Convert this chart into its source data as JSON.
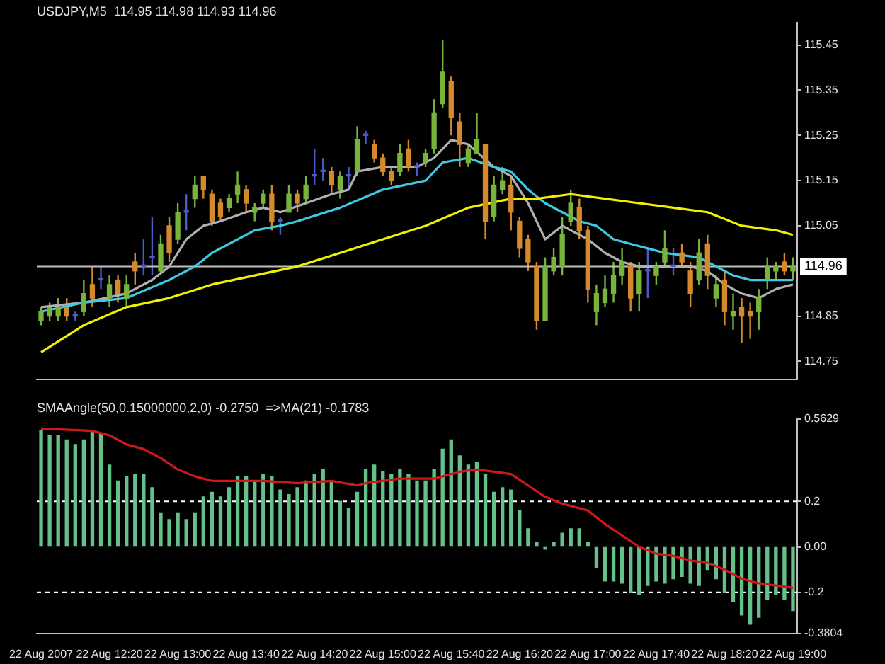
{
  "chart_data": [
    {
      "type": "candlestick",
      "title": "USDJPY,M5  114.95 114.98 114.93 114.96",
      "categories": [
        null,
        null,
        null,
        null,
        null,
        null,
        null,
        null,
        null,
        null,
        null,
        null,
        null,
        null,
        null,
        null,
        null,
        null,
        null,
        null,
        null,
        null,
        null,
        null,
        null,
        null,
        null,
        null,
        null,
        null,
        null,
        null,
        null,
        null,
        null,
        null,
        null,
        null,
        null,
        null,
        null,
        null,
        null,
        null,
        null,
        null,
        null,
        null,
        null,
        null,
        null,
        null,
        null,
        null,
        null,
        null,
        null,
        null,
        null,
        null,
        null,
        null,
        null,
        null,
        null,
        null,
        null,
        null,
        null,
        null,
        null,
        null,
        null,
        null,
        null,
        null,
        null,
        null,
        null,
        null,
        null,
        null,
        null,
        null,
        null,
        null,
        null,
        null,
        null
      ],
      "ohlc": [
        [
          114.84,
          114.87,
          114.83,
          114.86
        ],
        [
          114.85,
          114.88,
          114.84,
          114.87
        ],
        [
          114.85,
          114.89,
          114.84,
          114.87
        ],
        [
          114.87,
          114.89,
          114.84,
          114.85
        ],
        [
          114.85,
          114.86,
          114.84,
          114.85
        ],
        [
          114.86,
          114.93,
          114.85,
          114.9
        ],
        [
          114.92,
          114.96,
          114.87,
          114.89
        ],
        [
          114.93,
          114.96,
          114.91,
          114.93
        ],
        [
          114.89,
          114.94,
          114.87,
          114.92
        ],
        [
          114.93,
          114.94,
          114.88,
          114.9
        ],
        [
          114.89,
          114.94,
          114.87,
          114.92
        ],
        [
          114.97,
          114.99,
          114.92,
          114.95
        ],
        [
          114.96,
          115.02,
          114.94,
          114.96
        ],
        [
          114.98,
          115.07,
          114.94,
          114.98
        ],
        [
          114.95,
          115.03,
          114.94,
          115.01
        ],
        [
          115.05,
          115.07,
          114.97,
          114.99
        ],
        [
          115.02,
          115.1,
          115.01,
          115.08
        ],
        [
          115.08,
          115.12,
          115.04,
          115.08
        ],
        [
          115.11,
          115.16,
          115.09,
          115.14
        ],
        [
          115.16,
          115.16,
          115.11,
          115.13
        ],
        [
          115.12,
          115.13,
          115.05,
          115.06
        ],
        [
          115.1,
          115.11,
          115.06,
          115.07
        ],
        [
          115.09,
          115.12,
          115.08,
          115.11
        ],
        [
          115.12,
          115.17,
          115.1,
          115.14
        ],
        [
          115.13,
          115.14,
          115.08,
          115.1
        ],
        [
          115.08,
          115.1,
          115.06,
          115.09
        ],
        [
          115.1,
          115.13,
          115.09,
          115.12
        ],
        [
          115.12,
          115.14,
          115.04,
          115.06
        ],
        [
          115.06,
          115.07,
          115.03,
          115.06
        ],
        [
          115.08,
          115.14,
          115.08,
          115.12
        ],
        [
          115.12,
          115.13,
          115.08,
          115.1
        ],
        [
          115.11,
          115.16,
          115.1,
          115.14
        ],
        [
          115.16,
          115.22,
          115.14,
          115.16
        ],
        [
          115.17,
          115.2,
          115.15,
          115.17
        ],
        [
          115.17,
          115.18,
          115.12,
          115.14
        ],
        [
          115.13,
          115.17,
          115.11,
          115.16
        ],
        [
          115.16,
          115.18,
          115.13,
          115.16
        ],
        [
          115.17,
          115.27,
          115.16,
          115.24
        ],
        [
          115.25,
          115.26,
          115.23,
          115.25
        ],
        [
          115.23,
          115.24,
          115.19,
          115.2
        ],
        [
          115.2,
          115.21,
          115.16,
          115.17
        ],
        [
          115.17,
          115.18,
          115.14,
          115.15
        ],
        [
          115.17,
          115.23,
          115.16,
          115.21
        ],
        [
          115.22,
          115.24,
          115.17,
          115.18
        ],
        [
          115.18,
          115.19,
          115.16,
          115.18
        ],
        [
          115.19,
          115.22,
          115.18,
          115.21
        ],
        [
          115.22,
          115.33,
          115.21,
          115.3
        ],
        [
          115.32,
          115.46,
          115.31,
          115.39
        ],
        [
          115.37,
          115.38,
          115.25,
          115.29
        ],
        [
          115.28,
          115.3,
          115.18,
          115.23
        ],
        [
          115.19,
          115.23,
          115.18,
          115.22
        ],
        [
          115.21,
          115.3,
          115.21,
          115.24
        ],
        [
          115.23,
          115.23,
          115.02,
          115.06
        ],
        [
          115.07,
          115.16,
          115.06,
          115.14
        ],
        [
          115.13,
          115.18,
          115.12,
          115.15
        ],
        [
          115.14,
          115.16,
          115.04,
          115.08
        ],
        [
          115.06,
          115.07,
          114.98,
          115.0
        ],
        [
          115.02,
          115.03,
          114.95,
          114.97
        ],
        [
          114.96,
          114.97,
          114.82,
          114.84
        ],
        [
          114.84,
          114.98,
          114.84,
          114.96
        ],
        [
          114.95,
          115.0,
          114.94,
          114.98
        ],
        [
          114.96,
          115.07,
          114.94,
          115.03
        ],
        [
          115.06,
          115.13,
          115.05,
          115.1
        ],
        [
          115.09,
          115.11,
          115.02,
          115.04
        ],
        [
          115.04,
          115.05,
          114.88,
          114.91
        ],
        [
          114.86,
          114.92,
          114.83,
          114.9
        ],
        [
          114.88,
          114.94,
          114.87,
          114.91
        ],
        [
          114.9,
          114.97,
          114.88,
          114.94
        ],
        [
          114.94,
          115.0,
          114.92,
          114.97
        ],
        [
          114.96,
          114.97,
          114.86,
          114.89
        ],
        [
          114.9,
          114.97,
          114.86,
          114.95
        ],
        [
          114.95,
          115.0,
          114.89,
          114.95
        ],
        [
          114.94,
          114.97,
          114.92,
          114.96
        ],
        [
          114.97,
          115.04,
          114.96,
          115.0
        ],
        [
          114.96,
          115.0,
          114.94,
          114.96
        ],
        [
          114.99,
          115.01,
          114.96,
          114.97
        ],
        [
          114.95,
          114.97,
          114.87,
          114.9
        ],
        [
          114.93,
          115.02,
          114.92,
          114.99
        ],
        [
          115.01,
          115.03,
          114.91,
          114.94
        ],
        [
          114.89,
          114.94,
          114.87,
          114.92
        ],
        [
          114.93,
          114.95,
          114.83,
          114.86
        ],
        [
          114.85,
          114.9,
          114.82,
          114.86
        ],
        [
          114.87,
          114.89,
          114.79,
          114.85
        ],
        [
          114.86,
          114.88,
          114.8,
          114.85
        ],
        [
          114.86,
          114.91,
          114.82,
          114.89
        ],
        [
          114.93,
          114.98,
          114.91,
          114.96
        ],
        [
          114.95,
          114.97,
          114.93,
          114.96
        ],
        [
          114.97,
          114.99,
          114.94,
          114.95
        ],
        [
          114.95,
          114.98,
          114.93,
          114.96
        ]
      ],
      "colors": [
        "#78b43c",
        "#78b43c",
        "#78b43c",
        "#d48a2c",
        "#4a5cc8",
        "#78b43c",
        "#d48a2c",
        "#4a5cc8",
        "#78b43c",
        "#d48a2c",
        "#78b43c",
        "#d48a2c",
        "#4a5cc8",
        "#4a5cc8",
        "#78b43c",
        "#d48a2c",
        "#78b43c",
        "#4a5cc8",
        "#78b43c",
        "#d48a2c",
        "#d48a2c",
        "#d48a2c",
        "#78b43c",
        "#78b43c",
        "#d48a2c",
        "#78b43c",
        "#78b43c",
        "#d48a2c",
        "#4a5cc8",
        "#78b43c",
        "#d48a2c",
        "#78b43c",
        "#4a5cc8",
        "#4a5cc8",
        "#d48a2c",
        "#78b43c",
        "#4a5cc8",
        "#78b43c",
        "#4a5cc8",
        "#d48a2c",
        "#d48a2c",
        "#d48a2c",
        "#78b43c",
        "#d48a2c",
        "#4a5cc8",
        "#78b43c",
        "#78b43c",
        "#78b43c",
        "#d48a2c",
        "#d48a2c",
        "#78b43c",
        "#78b43c",
        "#d48a2c",
        "#78b43c",
        "#78b43c",
        "#d48a2c",
        "#d48a2c",
        "#d48a2c",
        "#d48a2c",
        "#78b43c",
        "#78b43c",
        "#78b43c",
        "#78b43c",
        "#d48a2c",
        "#d48a2c",
        "#78b43c",
        "#78b43c",
        "#78b43c",
        "#78b43c",
        "#d48a2c",
        "#78b43c",
        "#4a5cc8",
        "#78b43c",
        "#78b43c",
        "#4a5cc8",
        "#d48a2c",
        "#d48a2c",
        "#78b43c",
        "#d48a2c",
        "#78b43c",
        "#d48a2c",
        "#78b43c",
        "#d48a2c",
        "#d48a2c",
        "#78b43c",
        "#78b43c",
        "#78b43c",
        "#d48a2c",
        "#78b43c"
      ],
      "series": [
        {
          "type": "line",
          "color": "#f0f000",
          "values": [
            114.77,
            null,
            null,
            null,
            null,
            114.83,
            null,
            null,
            null,
            null,
            114.87,
            null,
            null,
            null,
            null,
            114.89,
            null,
            null,
            null,
            null,
            114.92,
            null,
            null,
            null,
            null,
            114.94,
            null,
            null,
            null,
            null,
            114.96,
            null,
            null,
            null,
            null,
            114.99,
            null,
            null,
            null,
            null,
            115.02,
            null,
            null,
            null,
            null,
            115.05,
            null,
            null,
            null,
            null,
            115.09,
            null,
            null,
            null,
            null,
            115.11,
            null,
            null,
            115.11,
            null,
            null,
            null,
            115.12,
            null,
            null,
            null,
            115.11,
            null,
            null,
            null,
            115.1,
            null,
            null,
            null,
            115.09,
            null,
            null,
            null,
            115.08,
            null,
            null,
            null,
            115.05,
            null,
            null,
            null,
            115.04,
            null,
            115.03
          ]
        },
        {
          "type": "line",
          "color": "#40c8e0",
          "values": [
            114.86,
            null,
            null,
            null,
            null,
            114.88,
            null,
            null,
            null,
            null,
            114.89,
            null,
            null,
            null,
            null,
            114.93,
            null,
            null,
            114.96,
            null,
            114.99,
            null,
            null,
            null,
            null,
            115.04,
            null,
            null,
            115.05,
            null,
            115.06,
            null,
            null,
            null,
            null,
            115.09,
            null,
            null,
            null,
            null,
            115.13,
            null,
            null,
            null,
            null,
            115.15,
            null,
            115.19,
            null,
            null,
            115.2,
            null,
            null,
            115.18,
            null,
            115.17,
            null,
            115.13,
            null,
            115.1,
            null,
            115.08,
            null,
            115.06,
            null,
            115.05,
            null,
            115.02,
            null,
            115.01,
            null,
            115.0,
            null,
            114.99,
            null,
            null,
            null,
            114.98,
            null,
            114.96,
            null,
            114.94,
            null,
            114.93,
            null,
            114.93,
            null,
            null,
            114.93
          ]
        },
        {
          "type": "line",
          "color": "#b0b0b0",
          "values": [
            114.87,
            null,
            null,
            null,
            null,
            114.88,
            null,
            null,
            null,
            null,
            114.9,
            null,
            null,
            114.93,
            null,
            114.96,
            null,
            115.02,
            null,
            115.05,
            null,
            115.06,
            null,
            null,
            115.08,
            null,
            115.09,
            null,
            115.08,
            null,
            null,
            115.1,
            null,
            null,
            115.12,
            null,
            115.13,
            115.17,
            null,
            null,
            115.18,
            null,
            null,
            null,
            115.18,
            null,
            115.2,
            null,
            115.24,
            null,
            115.23,
            null,
            null,
            115.18,
            null,
            115.16,
            null,
            115.1,
            null,
            115.02,
            null,
            115.05,
            null,
            null,
            115.02,
            null,
            114.99,
            null,
            114.97,
            null,
            114.96,
            null,
            null,
            null,
            null,
            null,
            114.96,
            null,
            114.95,
            null,
            114.92,
            null,
            114.9,
            null,
            114.89,
            null,
            114.91,
            null,
            114.92
          ]
        }
      ],
      "ylim": [
        114.71,
        115.5
      ],
      "yticks": [
        115.45,
        115.35,
        115.25,
        115.15,
        115.05,
        114.85,
        114.75
      ],
      "ref_lines": [
        {
          "axis": "y",
          "value": 114.96,
          "label": "114.96",
          "color": "#c0c0c0",
          "line_style": "solid"
        }
      ],
      "tick_labels": "y"
    },
    {
      "type": "bar",
      "title": "SMAAngle(50,0.15000000,2,0) -0.2750  =>MA(21) -0.1783",
      "categories": [
        "22 Aug 2007",
        null,
        null,
        null,
        null,
        null,
        null,
        null,
        "22 Aug 12:20",
        null,
        null,
        null,
        null,
        null,
        null,
        null,
        "22 Aug 13:00",
        null,
        null,
        null,
        null,
        null,
        null,
        null,
        "22 Aug 13:40",
        null,
        null,
        null,
        null,
        null,
        null,
        null,
        "22 Aug 14:20",
        null,
        null,
        null,
        null,
        null,
        null,
        null,
        "22 Aug 15:00",
        null,
        null,
        null,
        null,
        null,
        null,
        null,
        "22 Aug 15:40",
        null,
        null,
        null,
        null,
        null,
        null,
        null,
        "22 Aug 16:20",
        null,
        null,
        null,
        null,
        null,
        null,
        null,
        "22 Aug 17:00",
        null,
        null,
        null,
        null,
        null,
        null,
        null,
        "22 Aug 17:40",
        null,
        null,
        null,
        null,
        null,
        null,
        null,
        "22 Aug 18:20",
        null,
        null,
        null,
        null,
        null,
        null,
        null,
        "22 Aug 19:00"
      ],
      "series": [
        {
          "type": "bar",
          "color": "#66c08a",
          "values": [
            0.51,
            0.49,
            0.49,
            0.47,
            0.45,
            0.47,
            0.51,
            0.5,
            0.36,
            0.29,
            0.31,
            0.32,
            0.32,
            0.26,
            0.15,
            0.12,
            0.15,
            0.12,
            0.15,
            0.22,
            0.24,
            0.22,
            0.26,
            0.31,
            0.31,
            0.29,
            0.32,
            0.31,
            0.25,
            0.23,
            0.26,
            0.29,
            0.32,
            0.34,
            0.29,
            0.2,
            0.17,
            0.24,
            0.34,
            0.36,
            0.33,
            0.32,
            0.34,
            0.32,
            0.29,
            0.29,
            0.34,
            0.43,
            0.47,
            0.4,
            0.36,
            0.37,
            0.32,
            0.24,
            0.26,
            0.25,
            0.16,
            0.08,
            0.02,
            -0.01,
            0.02,
            0.06,
            0.08,
            0.08,
            0.02,
            -0.09,
            -0.15,
            -0.15,
            -0.16,
            -0.2,
            -0.21,
            -0.17,
            -0.15,
            -0.16,
            -0.14,
            -0.13,
            -0.16,
            -0.17,
            -0.1,
            -0.14,
            -0.2,
            -0.24,
            -0.3,
            -0.34,
            -0.31,
            -0.23,
            -0.21,
            -0.23,
            -0.28
          ]
        },
        {
          "type": "line",
          "color": "#d01818",
          "values": [
            0.52,
            null,
            null,
            null,
            null,
            null,
            0.51,
            null,
            0.49,
            null,
            0.45,
            null,
            0.43,
            null,
            0.39,
            null,
            0.34,
            null,
            0.31,
            null,
            0.29,
            null,
            0.29,
            null,
            null,
            null,
            0.29,
            null,
            null,
            null,
            0.28,
            null,
            null,
            null,
            0.29,
            null,
            null,
            0.27,
            0.28,
            null,
            null,
            null,
            0.3,
            null,
            null,
            null,
            0.3,
            null,
            null,
            0.33,
            null,
            0.34,
            null,
            0.33,
            null,
            0.32,
            null,
            0.27,
            null,
            0.22,
            null,
            0.19,
            null,
            null,
            0.16,
            null,
            0.1,
            null,
            0.05,
            null,
            0.0,
            null,
            -0.03,
            null,
            -0.04,
            null,
            -0.06,
            null,
            -0.07,
            null,
            -0.1,
            null,
            -0.14,
            null,
            -0.16,
            null,
            -0.17,
            null,
            -0.18
          ]
        }
      ],
      "ylim": [
        -0.3804,
        0.5629
      ],
      "yticks": [
        0.5629,
        0.2,
        {
          "value": 0,
          "label": "0.00"
        },
        -0.2,
        -0.3804
      ],
      "ref_lines": [
        {
          "axis": "y",
          "value": 0.2,
          "color": "#ffffff",
          "line_style": "dashed"
        },
        {
          "axis": "y",
          "value": -0.2,
          "color": "#ffffff",
          "line_style": "dashed"
        }
      ]
    }
  ]
}
